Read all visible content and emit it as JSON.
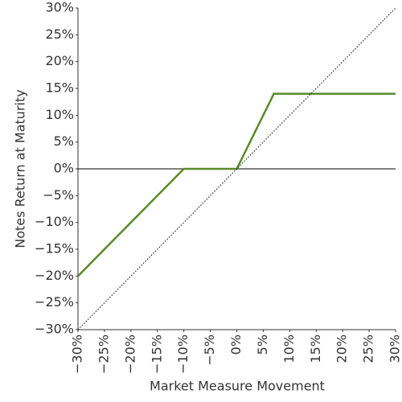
{
  "chart_data": {
    "type": "line",
    "xlabel": "Market Measure Movement",
    "ylabel": "Notes Return at Maturity",
    "series": [
      {
        "color": "#5a8a2a",
        "style": "solid",
        "x": [
          -30,
          -10,
          0,
          7,
          30
        ],
        "values": [
          -20,
          0,
          0,
          14,
          14
        ]
      },
      {
        "color": "#000000",
        "style": "dotted",
        "x": [
          -30,
          30
        ],
        "values": [
          -30,
          30
        ]
      }
    ],
    "zero_line": true,
    "xlim": [
      -30,
      30
    ],
    "ylim": [
      -30,
      30
    ],
    "xticks": [
      {
        "value": -30,
        "label": "−30%"
      },
      {
        "value": -25,
        "label": "−25%"
      },
      {
        "value": -20,
        "label": "−20%"
      },
      {
        "value": -15,
        "label": "−15%"
      },
      {
        "value": -10,
        "label": "−10%"
      },
      {
        "value": -5,
        "label": "−5%"
      },
      {
        "value": 0,
        "label": "0%"
      },
      {
        "value": 5,
        "label": "5%"
      },
      {
        "value": 10,
        "label": "10%"
      },
      {
        "value": 15,
        "label": "15%"
      },
      {
        "value": 20,
        "label": "20%"
      },
      {
        "value": 25,
        "label": "25%"
      },
      {
        "value": 30,
        "label": "30%"
      }
    ],
    "yticks": [
      {
        "value": -30,
        "label": "−30%"
      },
      {
        "value": -25,
        "label": "−25%"
      },
      {
        "value": -20,
        "label": "−20%"
      },
      {
        "value": -15,
        "label": "−15%"
      },
      {
        "value": -10,
        "label": "−10%"
      },
      {
        "value": -5,
        "label": "−5%"
      },
      {
        "value": 0,
        "label": "0%"
      },
      {
        "value": 5,
        "label": "5%"
      },
      {
        "value": 10,
        "label": "10%"
      },
      {
        "value": 15,
        "label": "15%"
      },
      {
        "value": 20,
        "label": "20%"
      },
      {
        "value": 25,
        "label": "25%"
      },
      {
        "value": 30,
        "label": "30%"
      }
    ]
  }
}
